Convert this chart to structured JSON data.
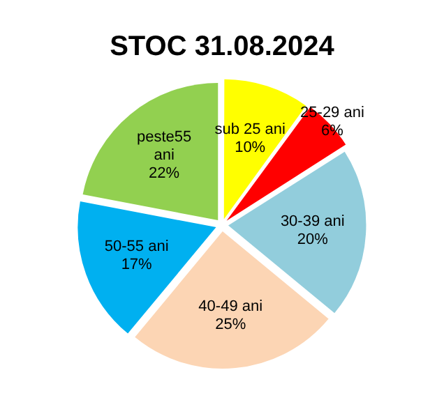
{
  "chart_data": {
    "type": "pie",
    "title": "STOC 31.08.2024",
    "categories": [
      "sub 25 ani",
      "25-29 ani",
      "30-39 ani",
      "40-49 ani",
      "50-55 ani",
      "peste55 ani"
    ],
    "values": [
      10,
      6,
      20,
      25,
      17,
      22
    ],
    "colors": [
      "#ffff00",
      "#ff0000",
      "#92cddc",
      "#fcd5b4",
      "#00b0f0",
      "#92d050"
    ],
    "value_labels": [
      "10%",
      "6%",
      "20%",
      "25%",
      "17%",
      "22%"
    ],
    "legend": false
  }
}
